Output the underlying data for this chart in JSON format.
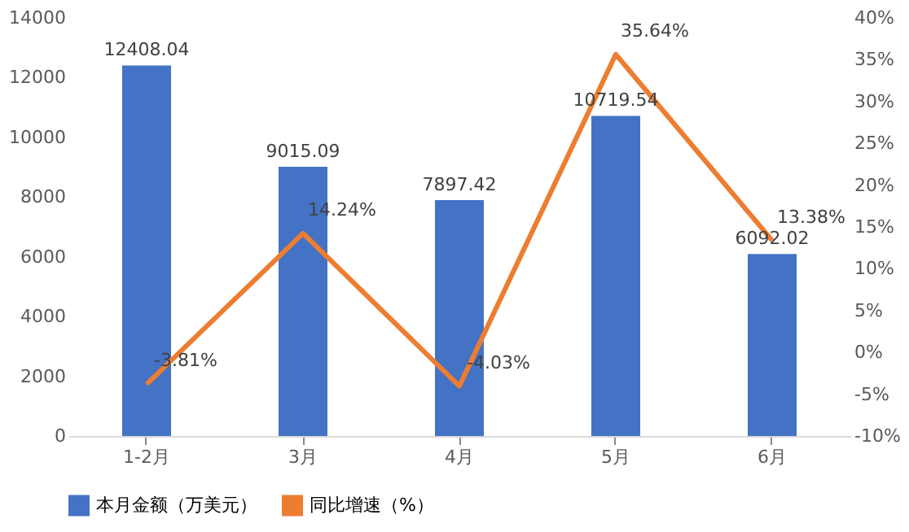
{
  "chart_data": {
    "type": "bar",
    "categories": [
      "1-2月",
      "3月",
      "4月",
      "5月",
      "6月"
    ],
    "series": [
      {
        "name": "本月金额（万美元）",
        "color": "#4472c4",
        "values": [
          12408.04,
          9015.09,
          7897.42,
          10719.54,
          6092.02
        ]
      },
      {
        "name": "同比增速（%）",
        "type": "line",
        "axis": "y2",
        "color": "#ed7d31",
        "values": [
          -3.81,
          14.24,
          -4.03,
          35.64,
          13.38
        ],
        "value_labels": [
          "-3.81%",
          "14.24%",
          "-4.03%",
          "35.64%",
          "13.38%"
        ]
      }
    ],
    "ylim": [
      0,
      14000
    ],
    "yticks": [
      0,
      2000,
      4000,
      6000,
      8000,
      10000,
      12000,
      14000
    ],
    "y2lim": [
      -10,
      40
    ],
    "y2ticks": [
      {
        "value": -10,
        "label": "-10%"
      },
      {
        "value": -5,
        "label": "-5%"
      },
      {
        "value": 0,
        "label": "0%"
      },
      {
        "value": 5,
        "label": "5%"
      },
      {
        "value": 10,
        "label": "10%"
      },
      {
        "value": 15,
        "label": "15%"
      },
      {
        "value": 20,
        "label": "20%"
      },
      {
        "value": 25,
        "label": "25%"
      },
      {
        "value": 30,
        "label": "30%"
      },
      {
        "value": 35,
        "label": "35%"
      },
      {
        "value": 40,
        "label": "40%"
      }
    ],
    "data_labels": true,
    "legend": "bottom",
    "grid": false,
    "marker": "none",
    "line_style": "solid"
  }
}
